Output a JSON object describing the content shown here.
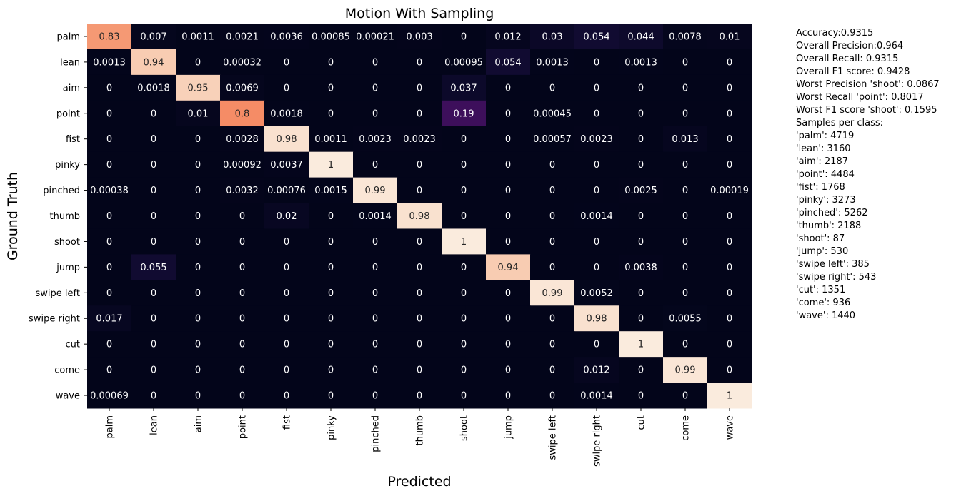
{
  "chart_data": {
    "type": "heatmap",
    "title": "Motion With Sampling",
    "xlabel": "Predicted",
    "ylabel": "Ground Truth",
    "categories": [
      "palm",
      "lean",
      "aim",
      "point",
      "fist",
      "pinky",
      "pinched",
      "thumb",
      "shoot",
      "jump",
      "swipe left",
      "swipe right",
      "cut",
      "come",
      "wave"
    ],
    "colorbar": "none",
    "colormap": "rocket",
    "value_range": [
      0,
      1
    ],
    "matrix": [
      [
        0.83,
        0.007,
        0.0011,
        0.0021,
        0.0036,
        0.00085,
        0.00021,
        0.003,
        0,
        0.012,
        0.03,
        0.054,
        0.044,
        0.0078,
        0.01
      ],
      [
        0.0013,
        0.94,
        0,
        0.00032,
        0,
        0,
        0,
        0,
        0.00095,
        0.054,
        0.0013,
        0,
        0.0013,
        0,
        0
      ],
      [
        0,
        0.0018,
        0.95,
        0.0069,
        0,
        0,
        0,
        0,
        0.037,
        0,
        0,
        0,
        0,
        0,
        0
      ],
      [
        0,
        0,
        0.01,
        0.8,
        0.0018,
        0,
        0,
        0,
        0.19,
        0,
        0.00045,
        0,
        0,
        0,
        0
      ],
      [
        0,
        0,
        0,
        0.0028,
        0.98,
        0.0011,
        0.0023,
        0.0023,
        0,
        0,
        0.00057,
        0.0023,
        0,
        0.013,
        0
      ],
      [
        0,
        0,
        0,
        0.00092,
        0.0037,
        1,
        0,
        0,
        0,
        0,
        0,
        0,
        0,
        0,
        0
      ],
      [
        0.00038,
        0,
        0,
        0.0032,
        0.00076,
        0.0015,
        0.99,
        0,
        0,
        0,
        0,
        0,
        0.0025,
        0,
        0.00019
      ],
      [
        0,
        0,
        0,
        0,
        0.02,
        0,
        0.0014,
        0.98,
        0,
        0,
        0,
        0.0014,
        0,
        0,
        0
      ],
      [
        0,
        0,
        0,
        0,
        0,
        0,
        0,
        0,
        1,
        0,
        0,
        0,
        0,
        0,
        0
      ],
      [
        0,
        0.055,
        0,
        0,
        0,
        0,
        0,
        0,
        0,
        0.94,
        0,
        0,
        0.0038,
        0,
        0
      ],
      [
        0,
        0,
        0,
        0,
        0,
        0,
        0,
        0,
        0,
        0,
        0.99,
        0.0052,
        0,
        0,
        0
      ],
      [
        0.017,
        0,
        0,
        0,
        0,
        0,
        0,
        0,
        0,
        0,
        0,
        0.98,
        0,
        0.0055,
        0
      ],
      [
        0,
        0,
        0,
        0,
        0,
        0,
        0,
        0,
        0,
        0,
        0,
        0,
        1,
        0,
        0
      ],
      [
        0,
        0,
        0,
        0,
        0,
        0,
        0,
        0,
        0,
        0,
        0,
        0.012,
        0,
        0.99,
        0
      ],
      [
        0.00069,
        0,
        0,
        0,
        0,
        0,
        0,
        0,
        0,
        0,
        0,
        0.0014,
        0,
        0,
        1
      ]
    ]
  },
  "stats": {
    "lines": [
      "Accuracy:0.9315",
      "Overall Precision:0.964",
      "Overall Recall: 0.9315",
      "Overall F1 score: 0.9428",
      "Worst Precision 'shoot': 0.0867",
      "Worst Recall 'point': 0.8017",
      "Worst F1 score 'shoot': 0.1595",
      "Samples per class:",
      "'palm': 4719",
      "'lean': 3160",
      "'aim': 2187",
      "'point': 4484",
      "'fist': 1768",
      "'pinky': 3273",
      "'pinched': 5262",
      "'thumb': 2188",
      "'shoot': 87",
      "'jump': 530",
      "'swipe left': 385",
      "'swipe right': 543",
      "'cut': 1351",
      "'come': 936",
      "'wave': 1440"
    ]
  }
}
